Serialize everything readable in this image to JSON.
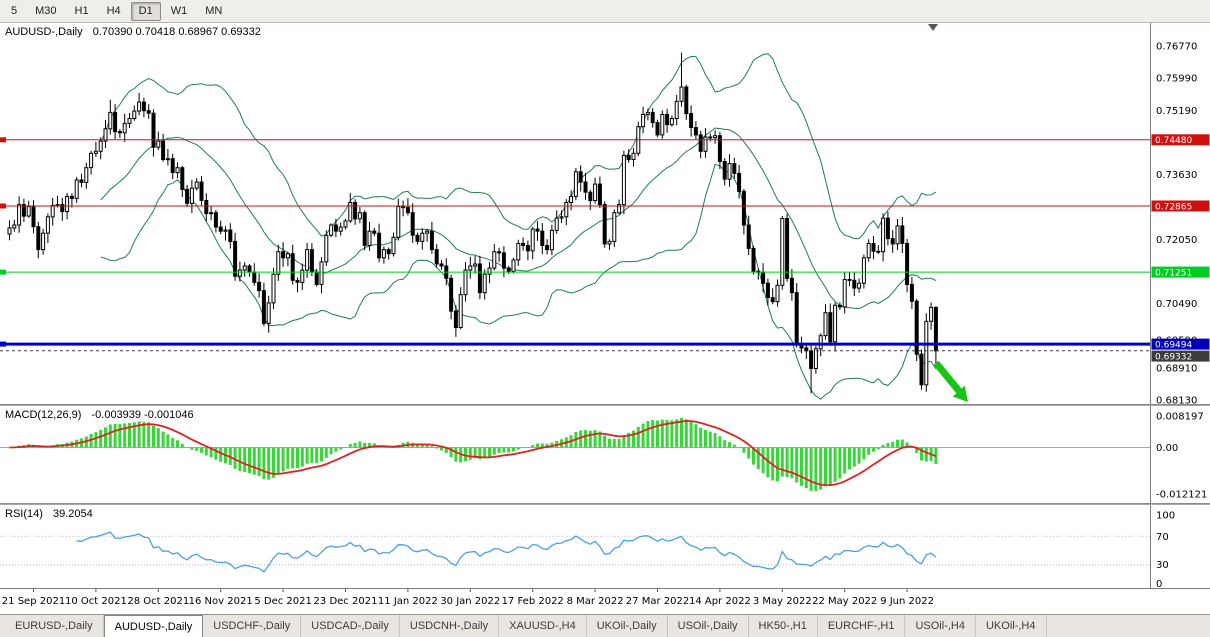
{
  "toolbar": {
    "periods": [
      "5",
      "M30",
      "H1",
      "H4",
      "D1",
      "W1",
      "MN"
    ],
    "active": "D1"
  },
  "chart": {
    "title": "AUDUSD-,Daily",
    "ohlc_text": "0.70390 0.70418 0.68967 0.69332"
  },
  "chart_data": {
    "type": "candlestick",
    "symbol": "AUDUSD",
    "timeframe": "Daily",
    "last_bar_ohlc": {
      "open": 0.7039,
      "high": 0.70418,
      "low": 0.68967,
      "close": 0.69332
    },
    "ylim": [
      0.6813,
      0.7677
    ],
    "closes": [
      0.7233,
      0.724,
      0.729,
      0.7262,
      0.7285,
      0.7236,
      0.718,
      0.722,
      0.726,
      0.7288,
      0.729,
      0.7273,
      0.731,
      0.7305,
      0.735,
      0.7344,
      0.738,
      0.7415,
      0.742,
      0.7445,
      0.7475,
      0.7515,
      0.7468,
      0.7465,
      0.7488,
      0.75,
      0.7518,
      0.754,
      0.7519,
      0.7513,
      0.743,
      0.7445,
      0.74,
      0.7402,
      0.7368,
      0.738,
      0.7327,
      0.7293,
      0.733,
      0.7345,
      0.73,
      0.7268,
      0.727,
      0.7235,
      0.7225,
      0.7228,
      0.72,
      0.7115,
      0.713,
      0.714,
      0.7125,
      0.71,
      0.708,
      0.7,
      0.705,
      0.712,
      0.7175,
      0.716,
      0.717,
      0.7105,
      0.71,
      0.713,
      0.718,
      0.7125,
      0.7095,
      0.715,
      0.7215,
      0.724,
      0.7225,
      0.7235,
      0.725,
      0.7295,
      0.7255,
      0.727,
      0.719,
      0.7225,
      0.722,
      0.716,
      0.718,
      0.717,
      0.721,
      0.7285,
      0.7283,
      0.727,
      0.7215,
      0.72,
      0.722,
      0.7225,
      0.718,
      0.7145,
      0.714,
      0.711,
      0.703,
      0.699,
      0.707,
      0.713,
      0.714,
      0.7145,
      0.7075,
      0.712,
      0.7135,
      0.7175,
      0.7172,
      0.7135,
      0.7127,
      0.7155,
      0.7195,
      0.719,
      0.7177,
      0.723,
      0.7225,
      0.719,
      0.718,
      0.7227,
      0.7257,
      0.726,
      0.7295,
      0.731,
      0.737,
      0.7345,
      0.732,
      0.73,
      0.734,
      0.729,
      0.7194,
      0.72,
      0.727,
      0.729,
      0.741,
      0.74,
      0.7415,
      0.748,
      0.751,
      0.7515,
      0.749,
      0.746,
      0.751,
      0.7485,
      0.75,
      0.7542,
      0.7577,
      0.7512,
      0.7478,
      0.746,
      0.742,
      0.7455,
      0.7453,
      0.7458,
      0.7395,
      0.7352,
      0.739,
      0.7366,
      0.7322,
      0.724,
      0.7183,
      0.7127,
      0.7125,
      0.7098,
      0.7063,
      0.7053,
      0.7093,
      0.7256,
      0.711,
      0.7075,
      0.695,
      0.694,
      0.6933,
      0.689,
      0.6938,
      0.697,
      0.7026,
      0.6955,
      0.7044,
      0.704,
      0.7107,
      0.7105,
      0.7086,
      0.7098,
      0.716,
      0.7195,
      0.7176,
      0.7175,
      0.7257,
      0.7207,
      0.7194,
      0.7238,
      0.7195,
      0.7095,
      0.7054,
      0.6925,
      0.685,
      0.7005,
      0.7039,
      0.6933
    ],
    "spike_highs": {
      "21": 0.7546,
      "27": 0.7555,
      "140": 0.7661
    },
    "spike_lows": {
      "53": 0.6993,
      "93": 0.6967,
      "167": 0.6829,
      "190": 0.6838
    },
    "overlays": {
      "bollinger": {
        "period": 20,
        "deviation": 2,
        "color": "#1e7f4f"
      }
    },
    "candle_colors": {
      "up_fill": "#ffffff",
      "down_fill": "#000000",
      "border": "#000000"
    },
    "hlines": [
      {
        "label": "0.74480",
        "value": 0.7448,
        "color": "#d01010",
        "width": 1
      },
      {
        "label": "0.72865",
        "value": 0.72865,
        "color": "#d01010",
        "width": 1
      },
      {
        "label": "0.71251",
        "value": 0.71251,
        "color": "#00cc22",
        "width": 1
      },
      {
        "label": "0.69494",
        "value": 0.69494,
        "color": "#0000bb",
        "width": 3
      },
      {
        "label": "0.69332",
        "value": 0.69332,
        "color": "#3c3c3c",
        "width": 1,
        "dashed": true,
        "current": true
      }
    ],
    "price_axis_ticks": [
      "0.76770",
      "0.75990",
      "0.75190",
      "0.73630",
      "0.72050",
      "0.70490",
      "0.69590",
      "0.68910",
      "0.68130"
    ],
    "indicators": [
      {
        "name": "MACD",
        "label": "MACD(12,26,9)",
        "values_text": "-0.003939 -0.001046",
        "params": {
          "fast": 12,
          "slow": 26,
          "signal": 9
        },
        "axis_ticks": [
          "0.008197",
          "0.00",
          "-0.012121"
        ],
        "ylim": [
          -0.012121,
          0.008197
        ],
        "histogram_color": "#3cd43c",
        "signal_color": "#dd2222"
      },
      {
        "name": "RSI",
        "label": "RSI(14)",
        "values_text": "39.2054",
        "params": {
          "period": 14
        },
        "axis_ticks": [
          "100",
          "70",
          "30",
          "0"
        ],
        "levels": [
          70,
          30
        ],
        "ylim": [
          0,
          100
        ],
        "line_color": "#4d9fe0"
      }
    ],
    "x_labels": [
      "21 Sep 2021",
      "10 Oct 2021",
      "28 Oct 2021",
      "16 Nov 2021",
      "5 Dec 2021",
      "23 Dec 2021",
      "11 Jan 2022",
      "30 Jan 2022",
      "17 Feb 2022",
      "8 Mar 2022",
      "27 Mar 2022",
      "14 Apr 2022",
      "3 May 2022",
      "22 May 2022",
      "9 Jun 2022"
    ],
    "x_label_bar_indices": [
      5,
      18,
      31,
      44,
      57,
      70,
      83,
      96,
      109,
      122,
      135,
      148,
      161,
      174,
      187
    ],
    "annotation": {
      "type": "arrow",
      "color": "#17c517",
      "direction": "down-right"
    }
  },
  "tabs": {
    "items": [
      "EURUSD-,Daily",
      "AUDUSD-,Daily",
      "USDCHF-,Daily",
      "USDCAD-,Daily",
      "USDCNH-,Daily",
      "XAUUSD-,H4",
      "UKOil-,Daily",
      "USOil-,Daily",
      "HK50-,H1",
      "EURCHF-,H1",
      "USOil-,H4",
      "UKOil-,H4"
    ],
    "active_index": 1
  }
}
